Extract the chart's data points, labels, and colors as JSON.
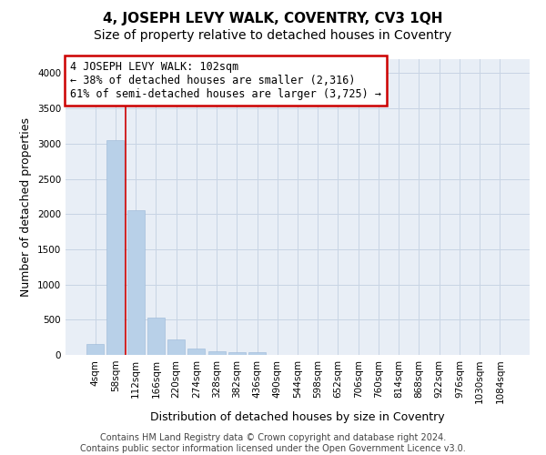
{
  "title": "4, JOSEPH LEVY WALK, COVENTRY, CV3 1QH",
  "subtitle": "Size of property relative to detached houses in Coventry",
  "xlabel": "Distribution of detached houses by size in Coventry",
  "ylabel": "Number of detached properties",
  "bin_labels": [
    "4sqm",
    "58sqm",
    "112sqm",
    "166sqm",
    "220sqm",
    "274sqm",
    "328sqm",
    "382sqm",
    "436sqm",
    "490sqm",
    "544sqm",
    "598sqm",
    "652sqm",
    "706sqm",
    "760sqm",
    "814sqm",
    "868sqm",
    "922sqm",
    "976sqm",
    "1030sqm",
    "1084sqm"
  ],
  "bar_values": [
    150,
    3050,
    2060,
    530,
    215,
    90,
    55,
    45,
    35,
    0,
    0,
    0,
    0,
    0,
    0,
    0,
    0,
    0,
    0,
    0,
    0
  ],
  "bar_color": "#b8d0e8",
  "bar_edge_color": "#9ab8d8",
  "grid_color": "#c8d4e4",
  "background_color": "#e8eef6",
  "vline_x": 1.5,
  "annotation_text": "4 JOSEPH LEVY WALK: 102sqm\n← 38% of detached houses are smaller (2,316)\n61% of semi-detached houses are larger (3,725) →",
  "annotation_box_color": "#cc0000",
  "ylim": [
    0,
    4200
  ],
  "yticks": [
    0,
    500,
    1000,
    1500,
    2000,
    2500,
    3000,
    3500,
    4000
  ],
  "footer_text": "Contains HM Land Registry data © Crown copyright and database right 2024.\nContains public sector information licensed under the Open Government Licence v3.0.",
  "title_fontsize": 11,
  "subtitle_fontsize": 10,
  "annot_fontsize": 8.5,
  "tick_fontsize": 7.5,
  "label_fontsize": 9,
  "footer_fontsize": 7
}
